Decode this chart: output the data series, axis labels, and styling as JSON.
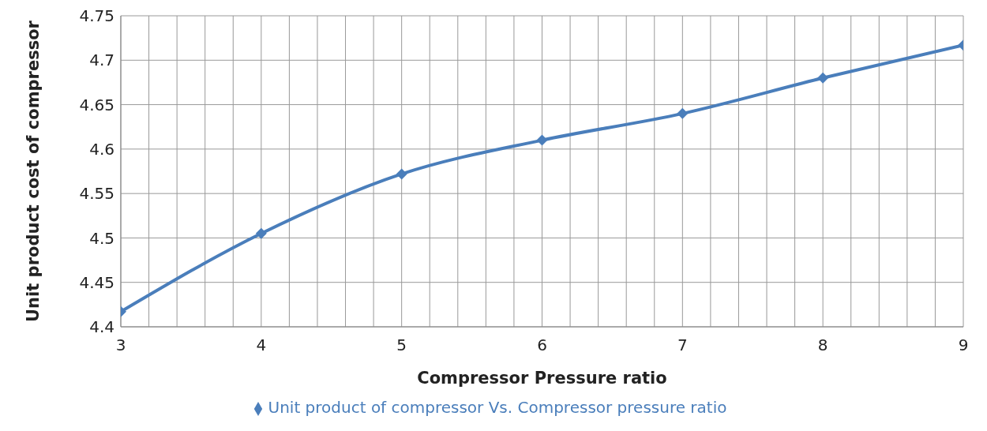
{
  "chart_data": {
    "type": "line",
    "xlabel": "Compressor Pressure ratio",
    "ylabel": "Unit product cost of compressor",
    "x": [
      3,
      4,
      5,
      6,
      7,
      8,
      9
    ],
    "series": [
      {
        "name": "Unit product of compressor Vs. Compressor pressure ratio",
        "color": "#4a7ebb",
        "values": [
          4.417,
          4.505,
          4.572,
          4.61,
          4.64,
          4.68,
          4.717
        ]
      }
    ],
    "xlim": [
      3,
      9
    ],
    "xticks": [
      3,
      {
        "value": 3.2,
        "label": null
      },
      {
        "value": 3.4,
        "label": null
      },
      {
        "value": 3.6,
        "label": null
      },
      {
        "value": 3.8,
        "label": null
      },
      4,
      {
        "value": 4.2,
        "label": null
      },
      {
        "value": 4.4,
        "label": null
      },
      {
        "value": 4.6,
        "label": null
      },
      {
        "value": 4.8,
        "label": null
      },
      5,
      {
        "value": 5.2,
        "label": null
      },
      {
        "value": 5.4,
        "label": null
      },
      {
        "value": 5.6,
        "label": null
      },
      {
        "value": 5.8,
        "label": null
      },
      6,
      {
        "value": 6.2,
        "label": null
      },
      {
        "value": 6.4,
        "label": null
      },
      {
        "value": 6.6,
        "label": null
      },
      {
        "value": 6.8,
        "label": null
      },
      7,
      {
        "value": 7.2,
        "label": null
      },
      {
        "value": 7.4,
        "label": null
      },
      {
        "value": 7.6,
        "label": null
      },
      {
        "value": 7.8,
        "label": null
      },
      8,
      {
        "value": 8.2,
        "label": null
      },
      {
        "value": 8.4,
        "label": null
      },
      {
        "value": 8.6,
        "label": null
      },
      {
        "value": 8.8,
        "label": null
      },
      9
    ],
    "ylim": [
      4.4,
      4.75
    ],
    "yticks": [
      4.4,
      4.45,
      4.5,
      4.55,
      4.6,
      4.65,
      4.7,
      4.75
    ],
    "grid": true,
    "legend": "bottom",
    "marker": "diamond",
    "line_style": "solid"
  }
}
